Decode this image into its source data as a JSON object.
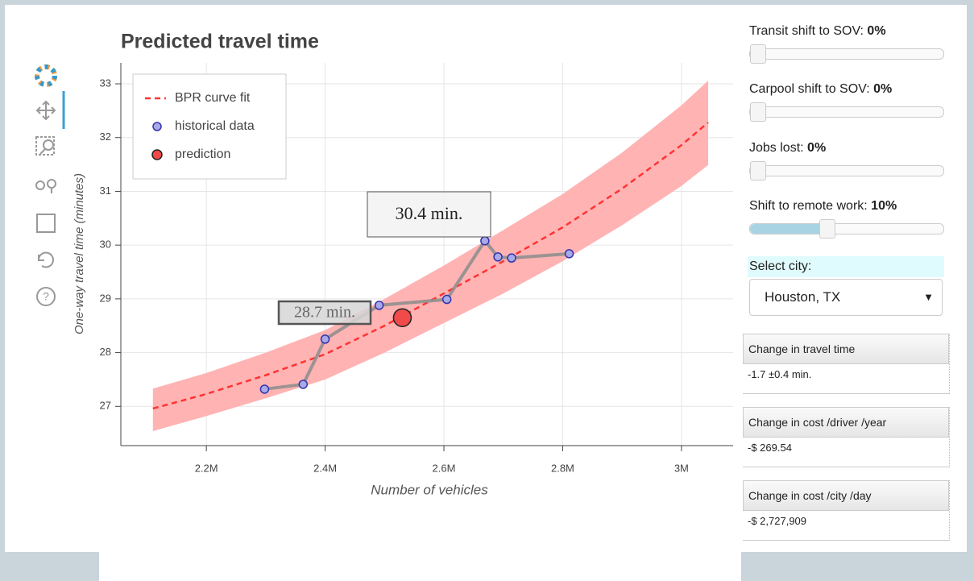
{
  "chart_data": {
    "type": "line",
    "title": "Predicted travel time",
    "x_label": "Number of vehicles",
    "y_label": "One-way travel time (minutes)",
    "xlim": [
      2056000,
      3087000
    ],
    "ylim": [
      26.27,
      33.39
    ],
    "xticks": [
      {
        "value": 2200000,
        "label": "2.2M"
      },
      {
        "value": 2400000,
        "label": "2.4M"
      },
      {
        "value": 2600000,
        "label": "2.6M"
      },
      {
        "value": 2800000,
        "label": "2.8M"
      },
      {
        "value": 3000000,
        "label": "3M"
      }
    ],
    "yticks": [
      27,
      28,
      29,
      30,
      31,
      32,
      33
    ],
    "grid": true,
    "legend": "top-left",
    "series": [
      {
        "name": "BPR curve fit",
        "color": "#ff3333",
        "band_color": "#ffb3b3",
        "x": [
          2110000,
          2200000,
          2300000,
          2400000,
          2500000,
          2600000,
          2700000,
          2800000,
          2900000,
          3000000,
          3045000
        ],
        "values": [
          26.96,
          27.23,
          27.58,
          27.97,
          28.5,
          29.1,
          29.7,
          30.33,
          31.05,
          31.86,
          32.28
        ],
        "upper": [
          27.33,
          27.62,
          28.0,
          28.42,
          29.0,
          29.62,
          30.28,
          30.95,
          31.72,
          32.6,
          33.06
        ],
        "lower": [
          26.54,
          26.82,
          27.15,
          27.5,
          28.0,
          28.55,
          29.1,
          29.7,
          30.37,
          31.1,
          31.49
        ]
      },
      {
        "name": "historical data",
        "color": "#a9a9e8",
        "line_color": "#8c8c8c",
        "x": [
          2298000,
          2363000,
          2400000,
          2491000,
          2605000,
          2669000,
          2691000,
          2714000,
          2811000
        ],
        "values": [
          27.32,
          27.41,
          28.25,
          28.88,
          28.99,
          30.08,
          29.78,
          29.76,
          29.84
        ]
      },
      {
        "name": "prediction",
        "color": "#f04a4a",
        "x": [
          2530000
        ],
        "values": [
          28.65
        ]
      }
    ],
    "annotations": [
      "30.4 min.",
      "28.7 min."
    ]
  },
  "controls": {
    "sliders": [
      {
        "label": "Transit shift to SOV:",
        "value": "0%"
      },
      {
        "label": "Carpool shift to SOV:",
        "value": "0%"
      },
      {
        "label": "Jobs lost:",
        "value": "0%"
      },
      {
        "label": "Shift to remote work:",
        "value": "10%"
      }
    ],
    "select": {
      "label": "Select city:",
      "value": "Houston, TX"
    },
    "tables": [
      {
        "header": "Change in travel time",
        "value": "-1.7 ±0.4 min."
      },
      {
        "header": "Change in cost /driver /year",
        "value": "-$ 269.54"
      },
      {
        "header": "Change in cost /city /day",
        "value": "-$ 2,727,909"
      }
    ]
  }
}
